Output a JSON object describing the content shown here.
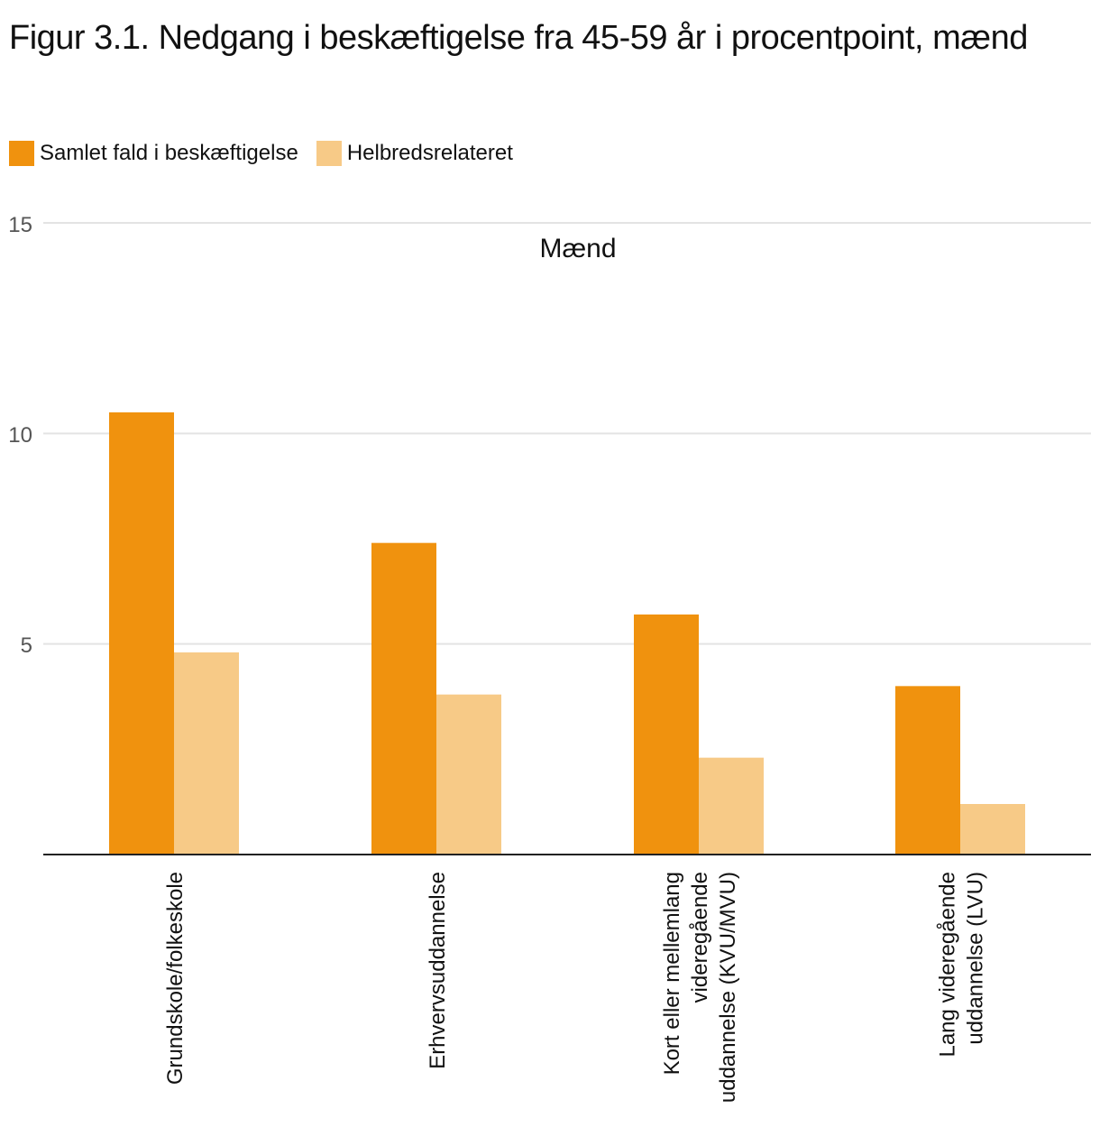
{
  "title": "Figur 3.1. Nedgang i beskæftigelse fra 45-59 år i procentpoint, mænd",
  "legend": [
    {
      "label": "Samlet fald i beskæftigelse",
      "color": "#F0920E"
    },
    {
      "label": "Helbredsrelateret",
      "color": "#F7CA87"
    }
  ],
  "chart_data": {
    "type": "bar",
    "title": "Mænd",
    "categories": [
      [
        "Grundskole/folkeskole"
      ],
      [
        "Erhvervsuddannelse"
      ],
      [
        "Kort eller mellemlang",
        "videregående",
        "uddannelse (KVU/MVU)"
      ],
      [
        "Lang videregående",
        "uddannelse (LVU)"
      ]
    ],
    "series": [
      {
        "name": "Samlet fald i beskæftigelse",
        "values": [
          10.5,
          7.4,
          5.7,
          4.0
        ]
      },
      {
        "name": "Helbredsrelateret",
        "values": [
          4.8,
          3.8,
          2.3,
          1.2
        ]
      }
    ],
    "ylim": [
      0,
      15
    ],
    "yticks": [
      "5",
      "10",
      "15"
    ],
    "grid": true,
    "xlabel": "",
    "ylabel": "",
    "legend_position": "top-left"
  }
}
